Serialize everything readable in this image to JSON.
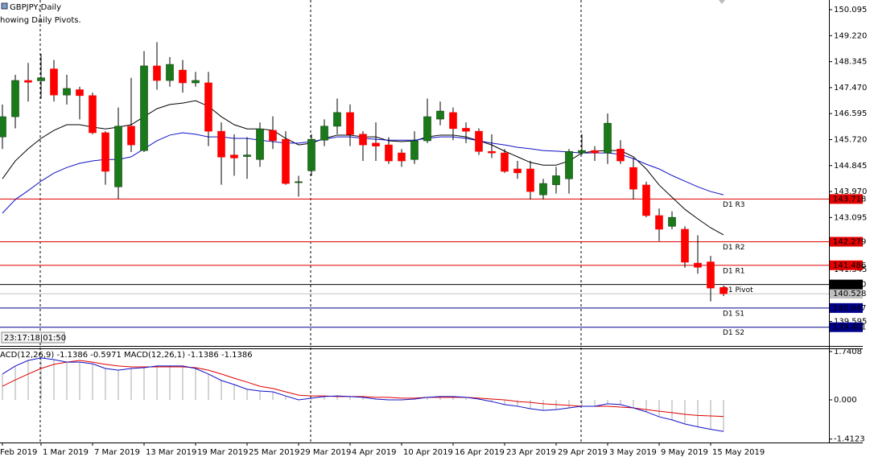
{
  "chart_data": {
    "type": "candlestick",
    "title": "GBPJPY,Daily",
    "subtitle": "howing Daily Pivots.",
    "timer": "23:17:18|01:50",
    "categories": [
      "Feb 2019",
      null,
      null,
      "1 Mar 2019",
      null,
      null,
      null,
      "7 Mar 2019",
      null,
      null,
      null,
      "13 Mar 2019",
      null,
      null,
      null,
      "19 Mar 2019",
      null,
      null,
      null,
      "25 Mar 2019",
      null,
      null,
      null,
      "29 Mar 2019",
      null,
      null,
      null,
      "4 Apr 2019",
      null,
      null,
      null,
      "10 Apr 2019",
      null,
      null,
      null,
      "16 Apr 2019",
      null,
      null,
      null,
      "23 Apr 2019",
      null,
      null,
      null,
      "29 Apr 2019",
      null,
      null,
      null,
      "3 May 2019",
      null,
      null,
      null,
      "9 May 2019",
      null,
      null,
      null,
      "15 May 2019",
      null
    ],
    "ohlc": [
      [
        145.81,
        146.9,
        145.4,
        146.49
      ],
      [
        146.49,
        147.9,
        146.1,
        147.71
      ],
      [
        147.71,
        148.3,
        147.0,
        147.65
      ],
      [
        147.7,
        148.6,
        147.1,
        147.8
      ],
      [
        148.1,
        148.4,
        147.0,
        147.22
      ],
      [
        147.22,
        147.9,
        146.9,
        147.44
      ],
      [
        147.4,
        147.5,
        146.4,
        147.2
      ],
      [
        147.2,
        147.3,
        145.9,
        145.95
      ],
      [
        145.95,
        146.0,
        144.2,
        144.65
      ],
      [
        144.13,
        146.8,
        143.72,
        146.17
      ],
      [
        146.17,
        147.8,
        145.3,
        145.54
      ],
      [
        145.35,
        148.7,
        145.3,
        148.2
      ],
      [
        148.2,
        149.0,
        147.4,
        147.71
      ],
      [
        147.71,
        148.5,
        147.5,
        148.25
      ],
      [
        148.06,
        148.4,
        147.3,
        147.63
      ],
      [
        147.63,
        148.0,
        147.5,
        147.71
      ],
      [
        147.63,
        148.0,
        145.5,
        146.0
      ],
      [
        146.0,
        146.3,
        144.2,
        145.13
      ],
      [
        145.2,
        145.9,
        144.5,
        145.1
      ],
      [
        145.15,
        145.8,
        144.4,
        145.2
      ],
      [
        145.05,
        146.3,
        144.8,
        146.08
      ],
      [
        146.03,
        146.5,
        145.4,
        145.68
      ],
      [
        145.73,
        146.0,
        144.2,
        144.24
      ],
      [
        144.27,
        144.5,
        143.8,
        144.3
      ],
      [
        144.67,
        145.9,
        144.5,
        145.73
      ],
      [
        145.7,
        146.4,
        145.5,
        146.17
      ],
      [
        146.17,
        147.1,
        145.9,
        146.63
      ],
      [
        146.63,
        146.9,
        145.5,
        145.89
      ],
      [
        145.9,
        146.0,
        145.0,
        145.54
      ],
      [
        145.6,
        146.3,
        145.0,
        145.5
      ],
      [
        145.54,
        145.8,
        144.9,
        145.0
      ],
      [
        145.27,
        145.4,
        144.8,
        145.0
      ],
      [
        145.05,
        146.0,
        144.9,
        145.68
      ],
      [
        145.68,
        147.1,
        145.6,
        146.49
      ],
      [
        146.41,
        147.0,
        146.2,
        146.68
      ],
      [
        146.63,
        146.8,
        145.7,
        146.09
      ],
      [
        146.1,
        146.3,
        145.6,
        146.0
      ],
      [
        146.0,
        146.1,
        145.2,
        145.32
      ],
      [
        145.32,
        145.9,
        145.1,
        145.27
      ],
      [
        145.27,
        145.4,
        144.6,
        144.65
      ],
      [
        144.73,
        145.0,
        144.4,
        144.6
      ],
      [
        144.73,
        145.0,
        143.7,
        143.97
      ],
      [
        143.86,
        144.4,
        143.7,
        144.24
      ],
      [
        144.2,
        144.8,
        143.9,
        144.5
      ],
      [
        144.4,
        145.4,
        143.9,
        145.32
      ],
      [
        145.27,
        145.9,
        145.2,
        145.35
      ],
      [
        145.35,
        145.5,
        145.0,
        145.27
      ],
      [
        145.27,
        146.6,
        144.9,
        146.27
      ],
      [
        145.4,
        145.7,
        144.9,
        145.0
      ],
      [
        144.78,
        145.1,
        143.7,
        144.05
      ],
      [
        144.19,
        144.3,
        143.1,
        143.16
      ],
      [
        143.16,
        143.4,
        142.3,
        142.7
      ],
      [
        142.8,
        143.3,
        142.7,
        143.1
      ],
      [
        142.7,
        142.8,
        141.4,
        141.59
      ],
      [
        141.56,
        142.5,
        141.2,
        141.42
      ],
      [
        141.6,
        141.8,
        140.27,
        140.72
      ],
      [
        140.74,
        140.8,
        140.45,
        140.528
      ]
    ],
    "up_color": "#1a7a1a",
    "down_color": "#ff0000",
    "series": [
      {
        "color": "#000000",
        "values": [
          144.4,
          145.0,
          145.41,
          145.76,
          146.03,
          146.22,
          146.22,
          146.14,
          146.08,
          146.14,
          146.22,
          146.49,
          146.76,
          146.9,
          146.95,
          147.03,
          146.84,
          146.49,
          146.22,
          146.08,
          146.08,
          146.03,
          145.76,
          145.54,
          145.6,
          145.76,
          145.87,
          145.87,
          145.81,
          145.81,
          145.68,
          145.65,
          145.68,
          145.81,
          145.87,
          145.87,
          145.81,
          145.68,
          145.54,
          145.33,
          145.14,
          144.95,
          144.86,
          144.86,
          145.0,
          145.27,
          145.33,
          145.35,
          145.35,
          145.14,
          144.73,
          144.19,
          143.78,
          143.37,
          143.05,
          142.75,
          142.51
        ]
      },
      {
        "color": "#1010c8",
        "values": [
          143.24,
          143.7,
          144.0,
          144.32,
          144.59,
          144.78,
          144.92,
          145.0,
          145.05,
          145.05,
          145.14,
          145.41,
          145.68,
          145.87,
          145.95,
          145.9,
          145.81,
          145.81,
          145.76,
          145.76,
          145.7,
          145.65,
          145.6,
          145.6,
          145.65,
          145.73,
          145.81,
          145.81,
          145.76,
          145.73,
          145.7,
          145.7,
          145.7,
          145.76,
          145.81,
          145.81,
          145.76,
          145.68,
          145.6,
          145.54,
          145.46,
          145.41,
          145.35,
          145.33,
          145.3,
          145.27,
          145.27,
          145.27,
          145.22,
          145.08,
          144.89,
          144.73,
          144.51,
          144.32,
          144.13,
          143.97,
          143.86
        ]
      }
    ],
    "ylim": [
      138.77,
      150.42
    ],
    "yticks": [
      150.095,
      {
        "value": 149.22,
        "label": "149.220"
      },
      148.345,
      {
        "value": 147.47,
        "label": "147.470"
      },
      146.595,
      {
        "value": 145.72,
        "label": "145.720"
      },
      144.845,
      {
        "value": 143.97,
        "label": "143.970"
      },
      143.095,
      141.345,
      139.595
    ],
    "pivots": [
      {
        "name": "D1 R3",
        "value": 143.718,
        "color": "#e00000"
      },
      {
        "name": "D1 R2",
        "value": 142.279,
        "color": "#e00000"
      },
      {
        "name": "D1 R1",
        "value": 141.486,
        "color": "#e00000"
      },
      {
        "name": "D1 Pivot",
        "value": 140.84,
        "value_label": "140.840",
        "color": "#000000"
      },
      {
        "name": "D1 S1",
        "value": 140.047,
        "color": "#00008b"
      },
      {
        "name": "D1 S2",
        "value": 139.401,
        "color": "#00008b"
      }
    ],
    "current_price": {
      "value": 140.528,
      "color": "#c0c0c0"
    },
    "indicator": {
      "type": "macd",
      "label": "ACD(12,26,9) -1.1386 -0.5971 MACD(12,26,1) -1.1386 -1.1386",
      "main": [
        0.93,
        1.22,
        1.42,
        1.51,
        1.45,
        1.36,
        1.36,
        1.3,
        1.13,
        1.07,
        1.13,
        1.16,
        1.22,
        1.22,
        1.22,
        1.13,
        0.93,
        0.7,
        0.55,
        0.38,
        0.32,
        0.29,
        0.14,
        0.0,
        0.06,
        0.12,
        0.14,
        0.12,
        0.09,
        0.03,
        0.0,
        0.0,
        0.03,
        0.09,
        0.12,
        0.12,
        0.09,
        0.03,
        -0.06,
        -0.17,
        -0.23,
        -0.32,
        -0.38,
        -0.35,
        -0.29,
        -0.23,
        -0.23,
        -0.14,
        -0.17,
        -0.29,
        -0.43,
        -0.61,
        -0.72,
        -0.87,
        -0.97,
        -1.06,
        -1.1386
      ],
      "signal": [
        0.49,
        0.72,
        0.93,
        1.13,
        1.28,
        1.36,
        1.42,
        1.36,
        1.28,
        1.22,
        1.19,
        1.19,
        1.19,
        1.19,
        1.19,
        1.16,
        1.07,
        0.93,
        0.78,
        0.64,
        0.49,
        0.41,
        0.29,
        0.17,
        0.14,
        0.14,
        0.12,
        0.12,
        0.12,
        0.09,
        0.09,
        0.06,
        0.06,
        0.09,
        0.09,
        0.09,
        0.09,
        0.06,
        0.03,
        0.0,
        -0.06,
        -0.09,
        -0.14,
        -0.17,
        -0.2,
        -0.23,
        -0.23,
        -0.23,
        -0.26,
        -0.29,
        -0.35,
        -0.41,
        -0.46,
        -0.52,
        -0.56,
        -0.58,
        -0.5971
      ],
      "histogram_color": "#a8a8a8",
      "main_color": "#1010c8",
      "signal_color": "#e00000",
      "ylim": [
        -1.536,
        1.855
      ],
      "yticks": [
        1.7408,
        {
          "value": 0,
          "label": "0.000"
        },
        -1.4123
      ]
    }
  }
}
